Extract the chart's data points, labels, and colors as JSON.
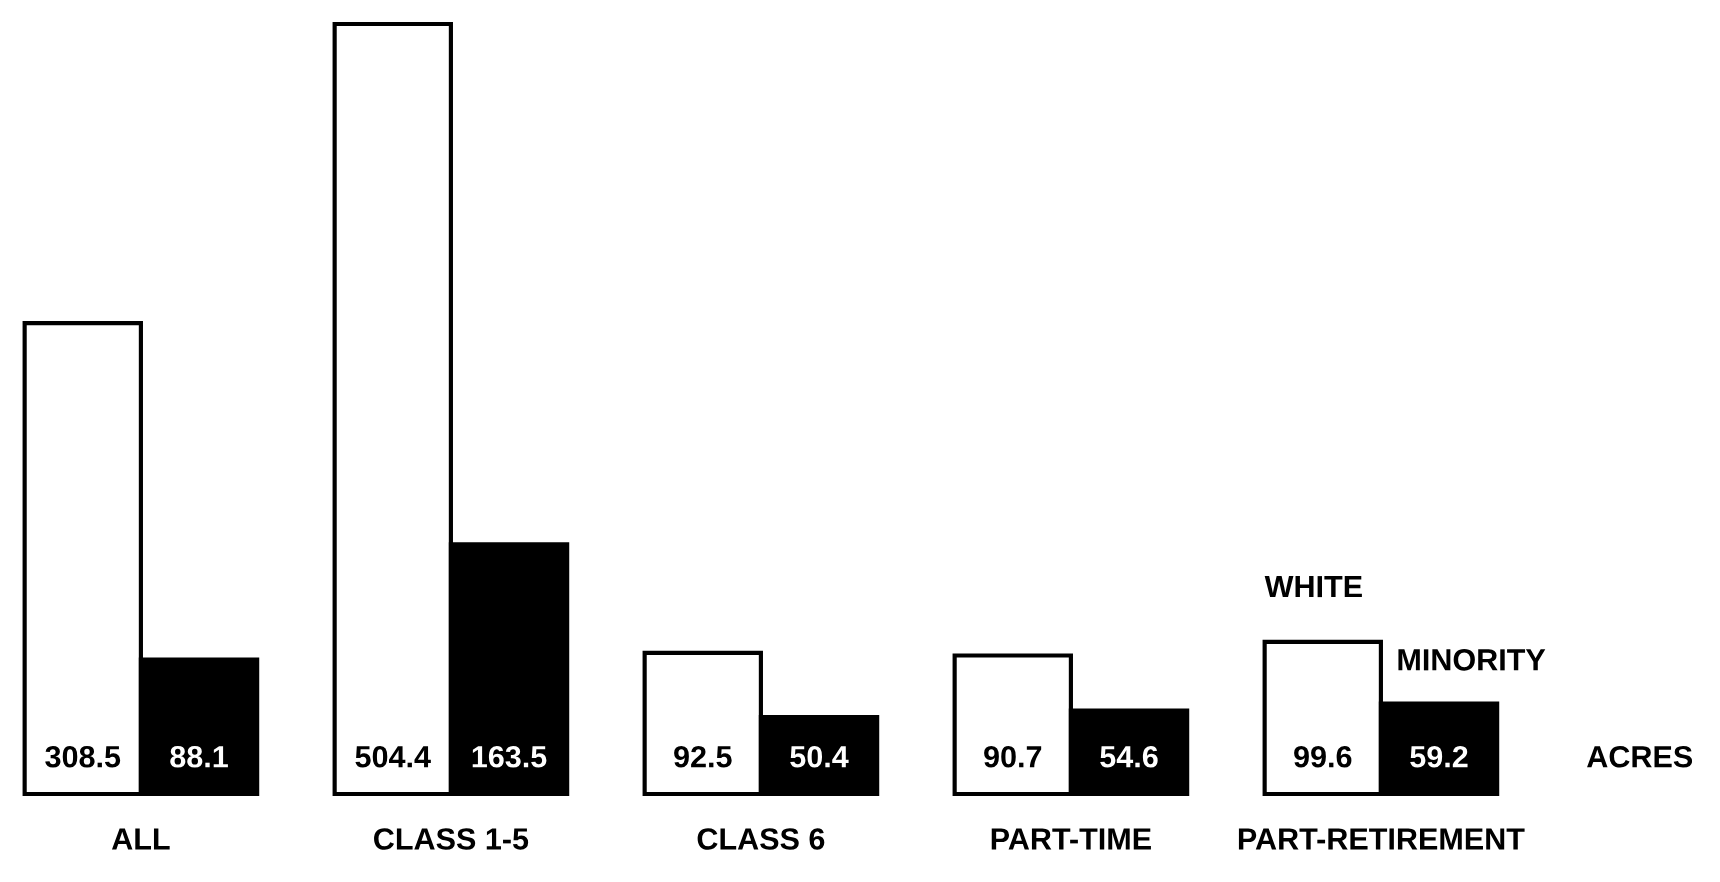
{
  "chart_data": {
    "type": "bar",
    "categories": [
      "ALL",
      "CLASS 1-5",
      "CLASS 6",
      "PART-TIME",
      "PART-RETIREMENT"
    ],
    "series": [
      {
        "name": "WHITE",
        "color": "#ffffff",
        "values": [
          308.5,
          504.4,
          92.5,
          90.7,
          99.6
        ]
      },
      {
        "name": "MINORITY",
        "color": "#000000",
        "values": [
          88.1,
          163.5,
          50.4,
          54.6,
          59.2
        ]
      }
    ],
    "data_labels": true,
    "annotations": [
      "ACRES"
    ],
    "grid": false,
    "legend": false
  }
}
